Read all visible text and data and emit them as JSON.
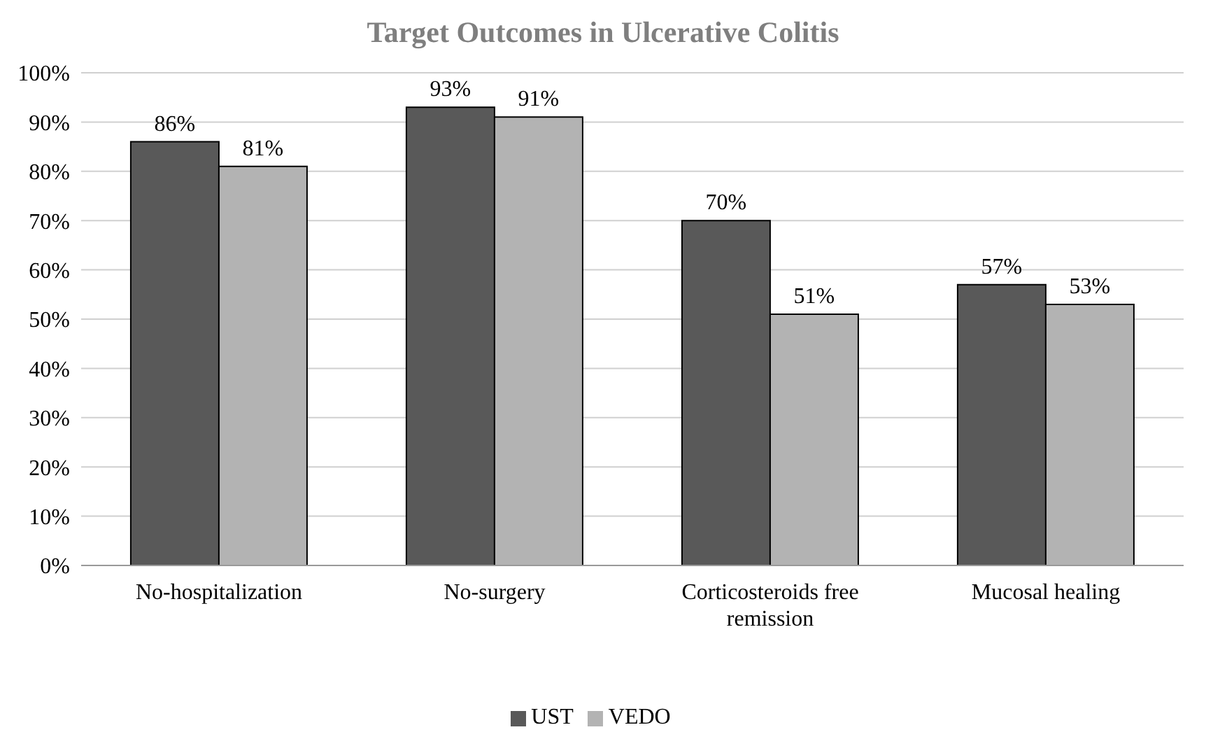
{
  "chart_data": {
    "type": "bar",
    "title": "Target Outcomes in Ulcerative Colitis",
    "categories": [
      "No-hospitalization",
      "No-surgery",
      "Corticosteroids free remission",
      "Mucosal healing"
    ],
    "series": [
      {
        "name": "UST",
        "color": "#595959",
        "values": [
          86,
          93,
          70,
          57
        ],
        "value_labels": [
          "86%",
          "93%",
          "70%",
          "57%"
        ]
      },
      {
        "name": "VEDO",
        "color": "#b3b3b3",
        "values": [
          81,
          91,
          51,
          53
        ],
        "value_labels": [
          "81%",
          "91%",
          "51%",
          "53%"
        ]
      }
    ],
    "ylim": [
      0,
      100
    ],
    "yticks": [
      {
        "value": 0,
        "label": "0%"
      },
      {
        "value": 10,
        "label": "10%"
      },
      {
        "value": 20,
        "label": "20%"
      },
      {
        "value": 30,
        "label": "30%"
      },
      {
        "value": 40,
        "label": "40%"
      },
      {
        "value": 50,
        "label": "50%"
      },
      {
        "value": 60,
        "label": "60%"
      },
      {
        "value": 70,
        "label": "70%"
      },
      {
        "value": 80,
        "label": "80%"
      },
      {
        "value": 90,
        "label": "90%"
      },
      {
        "value": 100,
        "label": "100%"
      }
    ],
    "grid": "y",
    "legend": "bottom"
  }
}
